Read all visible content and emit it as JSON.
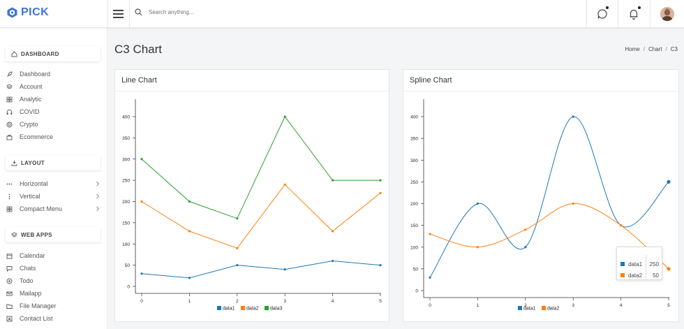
{
  "app": {
    "logo_text": "PICK"
  },
  "header": {
    "search_placeholder": "Search anything..."
  },
  "sidebar": {
    "sections": [
      {
        "label": "DASHBOARD",
        "icon": "home-icon"
      },
      {
        "label": "LAYOUT",
        "icon": "layout-icon"
      },
      {
        "label": "WEB APPS",
        "icon": "layers-icon"
      }
    ],
    "dashboard_items": [
      {
        "label": "Dashboard",
        "icon": "rocket-icon"
      },
      {
        "label": "Account",
        "icon": "stack-icon"
      },
      {
        "label": "Analytic",
        "icon": "grid-icon"
      },
      {
        "label": "COVID",
        "icon": "headphones-icon"
      },
      {
        "label": "Crypto",
        "icon": "coin-icon"
      },
      {
        "label": "Ecommerce",
        "icon": "bag-icon"
      }
    ],
    "layout_items": [
      {
        "label": "Horizontal",
        "icon": "dots-horizontal-icon"
      },
      {
        "label": "Vertical",
        "icon": "dots-vertical-icon"
      },
      {
        "label": "Compact Menu",
        "icon": "grid-icon"
      }
    ],
    "webapp_items": [
      {
        "label": "Calendar",
        "icon": "calendar-icon"
      },
      {
        "label": "Chats",
        "icon": "chat-icon"
      },
      {
        "label": "Todo",
        "icon": "target-icon"
      },
      {
        "label": "Mailapp",
        "icon": "mail-icon"
      },
      {
        "label": "File Manager",
        "icon": "folder-icon"
      },
      {
        "label": "Contact List",
        "icon": "contact-icon"
      }
    ]
  },
  "page": {
    "title": "C3 Chart",
    "breadcrumb": [
      "Home",
      "Chart",
      "C3"
    ]
  },
  "cards": {
    "line_title": "Line Chart",
    "spline_title": "Spline Chart"
  },
  "colors": {
    "data1": "#1f77b4",
    "data2": "#ff7f0e",
    "data3": "#2ca02c",
    "accent": "#3d75d9"
  },
  "tooltip": {
    "rows": [
      {
        "name": "data1",
        "value": "250"
      },
      {
        "name": "data2",
        "value": "50"
      }
    ]
  },
  "chart_data": [
    {
      "type": "line",
      "title": "Line Chart",
      "x": [
        0,
        1,
        2,
        3,
        4,
        5
      ],
      "yticks": [
        0,
        50,
        100,
        150,
        200,
        250,
        300,
        350,
        400
      ],
      "ylim": [
        0,
        400
      ],
      "series": [
        {
          "name": "data1",
          "values": [
            30,
            20,
            50,
            40,
            60,
            50
          ]
        },
        {
          "name": "data2",
          "values": [
            200,
            130,
            90,
            240,
            130,
            220
          ]
        },
        {
          "name": "data3",
          "values": [
            300,
            200,
            160,
            400,
            250,
            250
          ]
        }
      ],
      "legend": "bottom",
      "grid": false
    },
    {
      "type": "line",
      "title": "Spline Chart",
      "x": [
        0,
        1,
        2,
        3,
        4,
        5
      ],
      "yticks": [
        0,
        50,
        100,
        150,
        200,
        250,
        300,
        350,
        400
      ],
      "ylim": [
        0,
        400
      ],
      "series": [
        {
          "name": "data1",
          "values": [
            30,
            200,
            100,
            400,
            150,
            250
          ]
        },
        {
          "name": "data2",
          "values": [
            130,
            100,
            140,
            200,
            150,
            50
          ]
        }
      ],
      "legend": "bottom",
      "grid": false
    }
  ]
}
